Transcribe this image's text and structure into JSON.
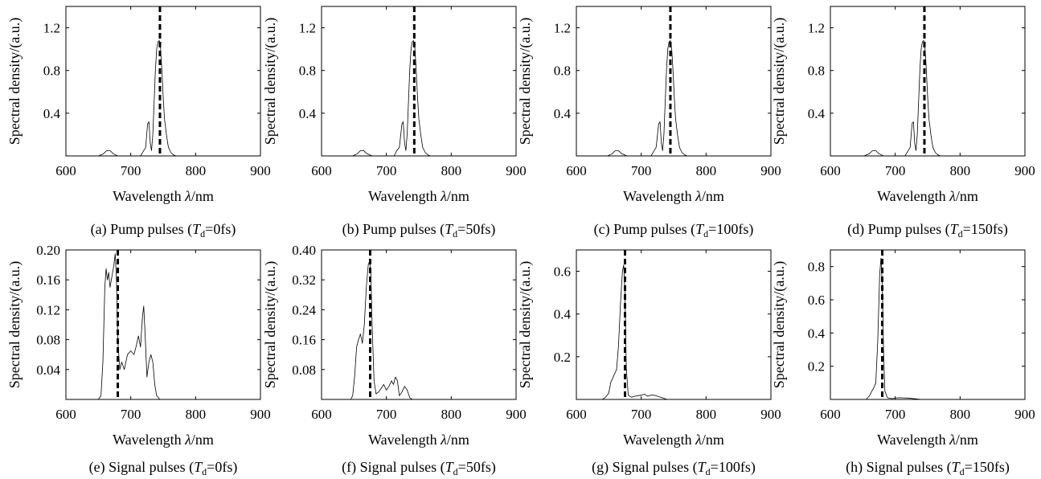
{
  "figure": {
    "panels": [
      {
        "type": "line",
        "ylabel": "Spectral density/(a.u.)",
        "xlabel_prefix": "Wavelength ",
        "xlabel_symbol": "λ",
        "xlabel_suffix": "/nm",
        "caption_prefix": "(a) Pump pulses (",
        "caption_symbol": "T",
        "caption_subscript": "d",
        "caption_value": "=0fs)",
        "xlim": [
          600,
          900
        ],
        "ylim": [
          0,
          1.4
        ],
        "xticks": [
          600,
          700,
          800,
          900
        ],
        "yticks": [
          0.4,
          0.8,
          1.2
        ],
        "ytick_labels": [
          "0.4",
          "0.8",
          "1.2"
        ],
        "xtick_labels": [
          "600",
          "700",
          "800",
          "900"
        ],
        "marker_x": 745,
        "series": [
          {
            "x": [
              600,
              650,
              658,
              663,
              668,
              673,
              680,
              715,
              720,
              723,
              726,
              728,
              730,
              732,
              734,
              736,
              738,
              740,
              742,
              744,
              746,
              748,
              750,
              752,
              755,
              758,
              762,
              766,
              770,
              800,
              900
            ],
            "y": [
              0,
              0,
              0.02,
              0.05,
              0.05,
              0.02,
              0,
              0,
              0.05,
              0.08,
              0.3,
              0.32,
              0.12,
              0.05,
              0.2,
              0.5,
              0.8,
              1.0,
              1.07,
              1.08,
              1.0,
              0.8,
              0.55,
              0.35,
              0.2,
              0.08,
              0.03,
              0.01,
              0,
              0,
              0
            ]
          }
        ]
      },
      {
        "type": "line",
        "ylabel": "Spectral density/(a.u.)",
        "xlabel_prefix": "Wavelength ",
        "xlabel_symbol": "λ",
        "xlabel_suffix": "/nm",
        "caption_prefix": "(b) Pump pulses (",
        "caption_symbol": "T",
        "caption_subscript": "d",
        "caption_value": "=50fs)",
        "xlim": [
          600,
          900
        ],
        "ylim": [
          0,
          1.4
        ],
        "xticks": [
          600,
          700,
          800,
          900
        ],
        "yticks": [
          0.4,
          0.8,
          1.2
        ],
        "ytick_labels": [
          "0.4",
          "0.8",
          "1.2"
        ],
        "xtick_labels": [
          "600",
          "700",
          "800",
          "900"
        ],
        "marker_x": 743,
        "series": [
          {
            "x": [
              600,
              648,
              655,
              660,
              665,
              670,
              678,
              712,
              716,
              720,
              724,
              726,
              728,
              730,
              732,
              734,
              736,
              738,
              740,
              742,
              744,
              746,
              748,
              750,
              753,
              756,
              760,
              764,
              768,
              800,
              900
            ],
            "y": [
              0,
              0,
              0.02,
              0.05,
              0.05,
              0.02,
              0,
              0,
              0.05,
              0.08,
              0.3,
              0.32,
              0.12,
              0.05,
              0.2,
              0.5,
              0.8,
              1.0,
              1.07,
              1.08,
              1.0,
              0.8,
              0.55,
              0.35,
              0.2,
              0.08,
              0.03,
              0.01,
              0,
              0,
              0
            ]
          }
        ]
      },
      {
        "type": "line",
        "ylabel": "Spectral density/(a.u.)",
        "xlabel_prefix": "Wavelength ",
        "xlabel_symbol": "λ",
        "xlabel_suffix": "/nm",
        "caption_prefix": "(c) Pump pulses (",
        "caption_symbol": "T",
        "caption_subscript": "d",
        "caption_value": "=100fs)",
        "xlim": [
          600,
          900
        ],
        "ylim": [
          0,
          1.4
        ],
        "xticks": [
          600,
          700,
          800,
          900
        ],
        "yticks": [
          0.4,
          0.8,
          1.2
        ],
        "ytick_labels": [
          "0.4",
          "0.8",
          "1.2"
        ],
        "xtick_labels": [
          "600",
          "700",
          "800",
          "900"
        ],
        "marker_x": 745,
        "series": [
          {
            "x": [
              600,
              648,
              655,
              660,
              665,
              670,
              678,
              715,
              720,
              723,
              727,
              729,
              731,
              733,
              735,
              737,
              739,
              741,
              743,
              745,
              747,
              749,
              751,
              753,
              756,
              759,
              763,
              767,
              771,
              800,
              900
            ],
            "y": [
              0,
              0,
              0.02,
              0.05,
              0.05,
              0.02,
              0,
              0,
              0.05,
              0.08,
              0.3,
              0.32,
              0.12,
              0.05,
              0.2,
              0.5,
              0.8,
              1.0,
              1.07,
              1.08,
              1.0,
              0.8,
              0.55,
              0.35,
              0.2,
              0.08,
              0.03,
              0.01,
              0,
              0,
              0
            ]
          }
        ]
      },
      {
        "type": "line",
        "ylabel": "Spectral density/(a.u.)",
        "xlabel_prefix": "Wavelength ",
        "xlabel_symbol": "λ",
        "xlabel_suffix": "/nm",
        "caption_prefix": "(d) Pump pulses (",
        "caption_symbol": "T",
        "caption_subscript": "d",
        "caption_value": "=150fs)",
        "xlim": [
          600,
          900
        ],
        "ylim": [
          0,
          1.4
        ],
        "xticks": [
          600,
          700,
          800,
          900
        ],
        "yticks": [
          0.4,
          0.8,
          1.2
        ],
        "ytick_labels": [
          "0.4",
          "0.8",
          "1.2"
        ],
        "xtick_labels": [
          "600",
          "700",
          "800",
          "900"
        ],
        "marker_x": 745,
        "series": [
          {
            "x": [
              600,
              652,
              660,
              665,
              670,
              675,
              682,
              715,
              720,
              723,
              726,
              728,
              730,
              732,
              734,
              736,
              738,
              740,
              742,
              744,
              746,
              748,
              750,
              752,
              755,
              758,
              762,
              766,
              770,
              800,
              900
            ],
            "y": [
              0,
              0,
              0.02,
              0.05,
              0.05,
              0.02,
              0,
              0,
              0.05,
              0.08,
              0.3,
              0.32,
              0.12,
              0.05,
              0.2,
              0.5,
              0.8,
              1.0,
              1.07,
              1.08,
              1.0,
              0.8,
              0.55,
              0.35,
              0.2,
              0.08,
              0.03,
              0.01,
              0,
              0,
              0
            ]
          }
        ]
      },
      {
        "type": "line",
        "ylabel": "Spectral density/(a.u.)",
        "xlabel_prefix": "Wavelength ",
        "xlabel_symbol": "λ",
        "xlabel_suffix": "/nm",
        "caption_prefix": "(e) Signal pulses (",
        "caption_symbol": "T",
        "caption_subscript": "d",
        "caption_value": "=0fs)",
        "xlim": [
          600,
          900
        ],
        "ylim": [
          0,
          0.2
        ],
        "xticks": [
          600,
          700,
          800,
          900
        ],
        "yticks": [
          0.04,
          0.08,
          0.12,
          0.16,
          0.2
        ],
        "ytick_labels": [
          "0.04",
          "0.08",
          "0.12",
          "0.16",
          "0.20"
        ],
        "xtick_labels": [
          "600",
          "700",
          "800",
          "900"
        ],
        "marker_x": 680,
        "series": [
          {
            "x": [
              600,
              650,
              654,
              657,
              660,
              662,
              664,
              666,
              668,
              670,
              672,
              674,
              676,
              678,
              680,
              683,
              686,
              690,
              695,
              700,
              705,
              708,
              712,
              715,
              718,
              720,
              722,
              725,
              728,
              731,
              734,
              737,
              740,
              745,
              750,
              900
            ],
            "y": [
              0,
              0,
              0.005,
              0.05,
              0.15,
              0.175,
              0.16,
              0.17,
              0.15,
              0.16,
              0.17,
              0.18,
              0.195,
              0.16,
              0.08,
              0.04,
              0.05,
              0.04,
              0.06,
              0.065,
              0.06,
              0.07,
              0.085,
              0.07,
              0.11,
              0.125,
              0.09,
              0.03,
              0.05,
              0.06,
              0.05,
              0.02,
              0.005,
              0,
              0,
              0
            ]
          }
        ]
      },
      {
        "type": "line",
        "ylabel": "Spectral density/(a.u.)",
        "xlabel_prefix": "Wavelength ",
        "xlabel_symbol": "λ",
        "xlabel_suffix": "/nm",
        "caption_prefix": "(f) Signal pulses (",
        "caption_symbol": "T",
        "caption_subscript": "d",
        "caption_value": "=50fs)",
        "xlim": [
          600,
          900
        ],
        "ylim": [
          0,
          0.4
        ],
        "xticks": [
          600,
          700,
          800,
          900
        ],
        "yticks": [
          0.08,
          0.16,
          0.24,
          0.32,
          0.4
        ],
        "ytick_labels": [
          "0.08",
          "0.16",
          "0.24",
          "0.32",
          "0.40"
        ],
        "xtick_labels": [
          "600",
          "700",
          "800",
          "900"
        ],
        "marker_x": 675,
        "series": [
          {
            "x": [
              600,
              645,
              648,
              651,
              654,
              657,
              660,
              663,
              666,
              669,
              672,
              674,
              676,
              678,
              681,
              684,
              688,
              692,
              696,
              700,
              704,
              708,
              711,
              714,
              717,
              720,
              724,
              728,
              732,
              736,
              740,
              900
            ],
            "y": [
              0,
              0,
              0.01,
              0.06,
              0.14,
              0.16,
              0.175,
              0.15,
              0.2,
              0.3,
              0.36,
              0.37,
              0.34,
              0.2,
              0.05,
              0.015,
              0.02,
              0.03,
              0.04,
              0.025,
              0.035,
              0.05,
              0.04,
              0.06,
              0.05,
              0.01,
              0.02,
              0.035,
              0.025,
              0.005,
              0,
              0
            ]
          }
        ]
      },
      {
        "type": "line",
        "ylabel": "Spectral density/(a.u.)",
        "xlabel_prefix": "Wavelength ",
        "xlabel_symbol": "λ",
        "xlabel_suffix": "/nm",
        "caption_prefix": "(g) Signal pulses (",
        "caption_symbol": "T",
        "caption_subscript": "d",
        "caption_value": "=100fs)",
        "xlim": [
          600,
          900
        ],
        "ylim": [
          0,
          0.7
        ],
        "xticks": [
          600,
          700,
          800,
          900
        ],
        "yticks": [
          0.2,
          0.4,
          0.6
        ],
        "ytick_labels": [
          "0.2",
          "0.4",
          "0.6"
        ],
        "xtick_labels": [
          "600",
          "700",
          "800",
          "900"
        ],
        "marker_x": 675,
        "series": [
          {
            "x": [
              600,
              640,
              645,
              650,
              653,
              656,
              659,
              662,
              665,
              668,
              671,
              673,
              675,
              677,
              680,
              685,
              690,
              700,
              705,
              710,
              715,
              720,
              725,
              730,
              740,
              900
            ],
            "y": [
              0,
              0,
              0.01,
              0.03,
              0.08,
              0.1,
              0.12,
              0.14,
              0.25,
              0.45,
              0.6,
              0.63,
              0.5,
              0.15,
              0.02,
              0.01,
              0.015,
              0.02,
              0.025,
              0.015,
              0.02,
              0.02,
              0.015,
              0.01,
              0,
              0
            ]
          }
        ]
      },
      {
        "type": "line",
        "ylabel": "Spectral density/(a.u.)",
        "xlabel_prefix": "Wavelength ",
        "xlabel_symbol": "λ",
        "xlabel_suffix": "/nm",
        "caption_prefix": "(h) Signal pulses (",
        "caption_symbol": "T",
        "caption_subscript": "d",
        "caption_value": "=150fs)",
        "xlim": [
          600,
          900
        ],
        "ylim": [
          0,
          0.9
        ],
        "xticks": [
          600,
          700,
          800,
          900
        ],
        "yticks": [
          0.2,
          0.4,
          0.6,
          0.8
        ],
        "ytick_labels": [
          "0.2",
          "0.4",
          "0.6",
          "0.8"
        ],
        "xtick_labels": [
          "600",
          "700",
          "800",
          "900"
        ],
        "marker_x": 680,
        "series": [
          {
            "x": [
              600,
              655,
              660,
              664,
              667,
              670,
              673,
              676,
              678,
              680,
              682,
              684,
              688,
              695,
              705,
              720,
              740,
              900
            ],
            "y": [
              0,
              0,
              0.02,
              0.05,
              0.07,
              0.1,
              0.35,
              0.75,
              0.85,
              0.7,
              0.3,
              0.05,
              0.01,
              0.005,
              0.01,
              0.008,
              0,
              0
            ]
          }
        ]
      }
    ]
  }
}
